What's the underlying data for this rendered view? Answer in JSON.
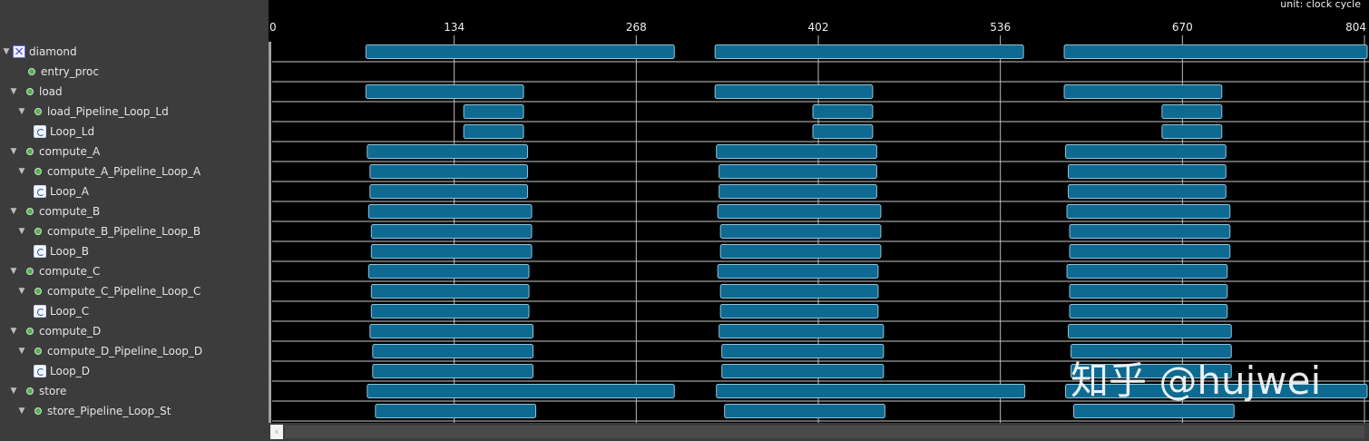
{
  "chart_data": {
    "type": "gantt",
    "unit": "unit: clock cycle",
    "x_ticks": [
      "0",
      "134",
      "268",
      "402",
      "536",
      "670",
      "804"
    ],
    "xlim": [
      0,
      810
    ],
    "rows": [
      {
        "name": "diamond",
        "level": 0,
        "toggle": true,
        "icon": "top",
        "bars": [
          [
            69,
            296
          ],
          [
            326,
            553
          ],
          [
            583,
            810
          ]
        ]
      },
      {
        "name": "entry_proc",
        "level": 1,
        "toggle": false,
        "icon": "dot",
        "bars": []
      },
      {
        "name": "load",
        "level": 1,
        "toggle": true,
        "icon": "dot",
        "bars": [
          [
            69,
            185
          ],
          [
            326,
            442
          ],
          [
            583,
            699
          ]
        ]
      },
      {
        "name": "load_Pipeline_Loop_Ld",
        "level": 2,
        "toggle": true,
        "icon": "dot",
        "bars": [
          [
            141,
            185
          ],
          [
            398,
            442
          ],
          [
            655,
            699
          ]
        ]
      },
      {
        "name": "Loop_Ld",
        "level": 3,
        "toggle": false,
        "icon": "loop",
        "bars": [
          [
            141,
            185
          ],
          [
            398,
            442
          ],
          [
            655,
            699
          ]
        ]
      },
      {
        "name": "compute_A",
        "level": 1,
        "toggle": true,
        "icon": "dot",
        "bars": [
          [
            70,
            188
          ],
          [
            327,
            445
          ],
          [
            584,
            702
          ]
        ]
      },
      {
        "name": "compute_A_Pipeline_Loop_A",
        "level": 2,
        "toggle": true,
        "icon": "dot",
        "bars": [
          [
            72,
            188
          ],
          [
            329,
            445
          ],
          [
            586,
            702
          ]
        ]
      },
      {
        "name": "Loop_A",
        "level": 3,
        "toggle": false,
        "icon": "loop",
        "bars": [
          [
            72,
            188
          ],
          [
            329,
            445
          ],
          [
            586,
            702
          ]
        ]
      },
      {
        "name": "compute_B",
        "level": 1,
        "toggle": true,
        "icon": "dot",
        "bars": [
          [
            71,
            191
          ],
          [
            328,
            448
          ],
          [
            585,
            705
          ]
        ]
      },
      {
        "name": "compute_B_Pipeline_Loop_B",
        "level": 2,
        "toggle": true,
        "icon": "dot",
        "bars": [
          [
            73,
            191
          ],
          [
            330,
            448
          ],
          [
            587,
            705
          ]
        ]
      },
      {
        "name": "Loop_B",
        "level": 3,
        "toggle": false,
        "icon": "loop",
        "bars": [
          [
            73,
            191
          ],
          [
            330,
            448
          ],
          [
            587,
            705
          ]
        ]
      },
      {
        "name": "compute_C",
        "level": 1,
        "toggle": true,
        "icon": "dot",
        "bars": [
          [
            71,
            189
          ],
          [
            328,
            446
          ],
          [
            585,
            703
          ]
        ]
      },
      {
        "name": "compute_C_Pipeline_Loop_C",
        "level": 2,
        "toggle": true,
        "icon": "dot",
        "bars": [
          [
            73,
            189
          ],
          [
            330,
            446
          ],
          [
            587,
            703
          ]
        ]
      },
      {
        "name": "Loop_C",
        "level": 3,
        "toggle": false,
        "icon": "loop",
        "bars": [
          [
            73,
            189
          ],
          [
            330,
            446
          ],
          [
            587,
            703
          ]
        ]
      },
      {
        "name": "compute_D",
        "level": 1,
        "toggle": true,
        "icon": "dot",
        "bars": [
          [
            72,
            192
          ],
          [
            329,
            450
          ],
          [
            586,
            706
          ]
        ]
      },
      {
        "name": "compute_D_Pipeline_Loop_D",
        "level": 2,
        "toggle": true,
        "icon": "dot",
        "bars": [
          [
            74,
            192
          ],
          [
            331,
            450
          ],
          [
            588,
            706
          ]
        ]
      },
      {
        "name": "Loop_D",
        "level": 3,
        "toggle": false,
        "icon": "loop",
        "bars": [
          [
            74,
            192
          ],
          [
            331,
            450
          ],
          [
            588,
            706
          ]
        ]
      },
      {
        "name": "store",
        "level": 1,
        "toggle": true,
        "icon": "dot",
        "bars": [
          [
            70,
            296
          ],
          [
            327,
            554
          ],
          [
            584,
            810
          ]
        ]
      },
      {
        "name": "store_Pipeline_Loop_St",
        "level": 2,
        "toggle": true,
        "icon": "dot",
        "bars": [
          [
            76,
            194
          ],
          [
            333,
            451
          ],
          [
            590,
            708
          ]
        ]
      }
    ],
    "bar_color": "#0e6a90",
    "bar_border": "#8fc4dc",
    "grid": true
  },
  "watermark": "知乎 @hujwei"
}
